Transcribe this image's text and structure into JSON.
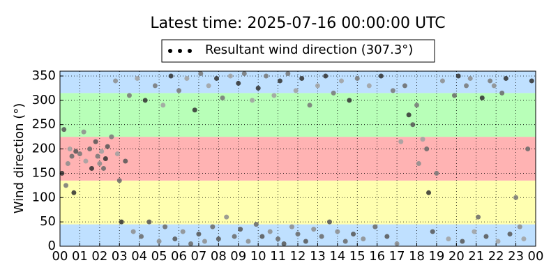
{
  "chart_data": {
    "type": "scatter",
    "title": "Latest time: 2025-07-16 00:00:00 UTC",
    "y_label": "Wind direction (°)",
    "xlim": [
      0,
      24
    ],
    "ylim": [
      0,
      360
    ],
    "xticks": [
      {
        "value": 0,
        "label": "00"
      },
      {
        "value": 1,
        "label": "01"
      },
      {
        "value": 2,
        "label": "02"
      },
      {
        "value": 3,
        "label": "03"
      },
      {
        "value": 4,
        "label": "04"
      },
      {
        "value": 5,
        "label": "05"
      },
      {
        "value": 6,
        "label": "06"
      },
      {
        "value": 7,
        "label": "07"
      },
      {
        "value": 8,
        "label": "08"
      },
      {
        "value": 9,
        "label": "09"
      },
      {
        "value": 10,
        "label": "10"
      },
      {
        "value": 11,
        "label": "11"
      },
      {
        "value": 12,
        "label": "12"
      },
      {
        "value": 13,
        "label": "13"
      },
      {
        "value": 14,
        "label": "14"
      },
      {
        "value": 15,
        "label": "15"
      },
      {
        "value": 16,
        "label": "16"
      },
      {
        "value": 17,
        "label": "17"
      },
      {
        "value": 18,
        "label": "18"
      },
      {
        "value": 19,
        "label": "19"
      },
      {
        "value": 20,
        "label": "20"
      },
      {
        "value": 21,
        "label": "21"
      },
      {
        "value": 22,
        "label": "22"
      },
      {
        "value": 23,
        "label": "23"
      },
      {
        "value": 24,
        "label": "00"
      }
    ],
    "yticks": [
      0,
      50,
      100,
      150,
      200,
      250,
      300,
      350
    ],
    "grid": true,
    "bands": [
      {
        "from": 0,
        "to": 45,
        "color": "#bfe0ff"
      },
      {
        "from": 45,
        "to": 135,
        "color": "#ffffb0"
      },
      {
        "from": 135,
        "to": 225,
        "color": "#ffb3b3"
      },
      {
        "from": 225,
        "to": 315,
        "color": "#b8ffb8"
      },
      {
        "from": 315,
        "to": 360,
        "color": "#bfe0ff"
      }
    ],
    "legend": "top",
    "series": [
      {
        "name": "Resultant wind direction (307.3°)",
        "color": "#606060",
        "x": [
          0.1,
          0.2,
          0.3,
          0.4,
          0.5,
          0.6,
          0.7,
          0.8,
          1.0,
          1.2,
          1.3,
          1.5,
          1.6,
          1.8,
          1.9,
          2.0,
          2.1,
          2.2,
          2.3,
          2.4,
          2.6,
          2.8,
          2.9,
          3.0,
          3.1,
          3.3,
          3.5,
          3.7,
          3.9,
          4.1,
          4.3,
          4.5,
          4.8,
          5.0,
          5.2,
          5.3,
          5.6,
          5.8,
          6.0,
          6.2,
          6.4,
          6.6,
          6.8,
          7.0,
          7.1,
          7.3,
          7.5,
          7.7,
          7.9,
          8.0,
          8.2,
          8.4,
          8.6,
          8.8,
          9.0,
          9.1,
          9.3,
          9.5,
          9.7,
          9.9,
          10.0,
          10.2,
          10.4,
          10.6,
          10.8,
          11.0,
          11.1,
          11.3,
          11.5,
          11.7,
          11.9,
          12.0,
          12.2,
          12.4,
          12.6,
          12.8,
          13.0,
          13.2,
          13.4,
          13.6,
          13.8,
          14.0,
          14.2,
          14.4,
          14.6,
          14.8,
          15.0,
          15.3,
          15.6,
          15.9,
          16.2,
          16.5,
          16.8,
          17.0,
          17.2,
          17.4,
          17.6,
          17.8,
          18.0,
          18.1,
          18.3,
          18.5,
          18.6,
          18.8,
          19.0,
          19.3,
          19.6,
          19.9,
          20.1,
          20.3,
          20.5,
          20.7,
          20.9,
          21.1,
          21.3,
          21.5,
          21.7,
          21.9,
          22.1,
          22.3,
          22.5,
          22.7,
          23.0,
          23.2,
          23.4,
          23.6,
          23.8
        ],
        "values": [
          150,
          240,
          125,
          170,
          200,
          185,
          110,
          195,
          190,
          235,
          175,
          200,
          160,
          215,
          185,
          170,
          195,
          160,
          180,
          205,
          225,
          340,
          190,
          135,
          50,
          175,
          310,
          30,
          345,
          20,
          300,
          50,
          330,
          10,
          290,
          40,
          350,
          15,
          320,
          30,
          345,
          5,
          280,
          25,
          355,
          10,
          330,
          40,
          345,
          15,
          305,
          60,
          350,
          20,
          335,
          35,
          355,
          10,
          300,
          45,
          325,
          20,
          350,
          30,
          310,
          15,
          340,
          5,
          355,
          40,
          320,
          25,
          345,
          10,
          290,
          35,
          330,
          20,
          350,
          50,
          315,
          30,
          340,
          10,
          300,
          25,
          345,
          15,
          330,
          40,
          350,
          20,
          320,
          5,
          215,
          330,
          270,
          250,
          290,
          170,
          220,
          200,
          110,
          30,
          150,
          340,
          15,
          310,
          350,
          10,
          330,
          345,
          30,
          60,
          305,
          20,
          340,
          330,
          10,
          315,
          345,
          25,
          100,
          40,
          15,
          200,
          340
        ]
      }
    ]
  }
}
